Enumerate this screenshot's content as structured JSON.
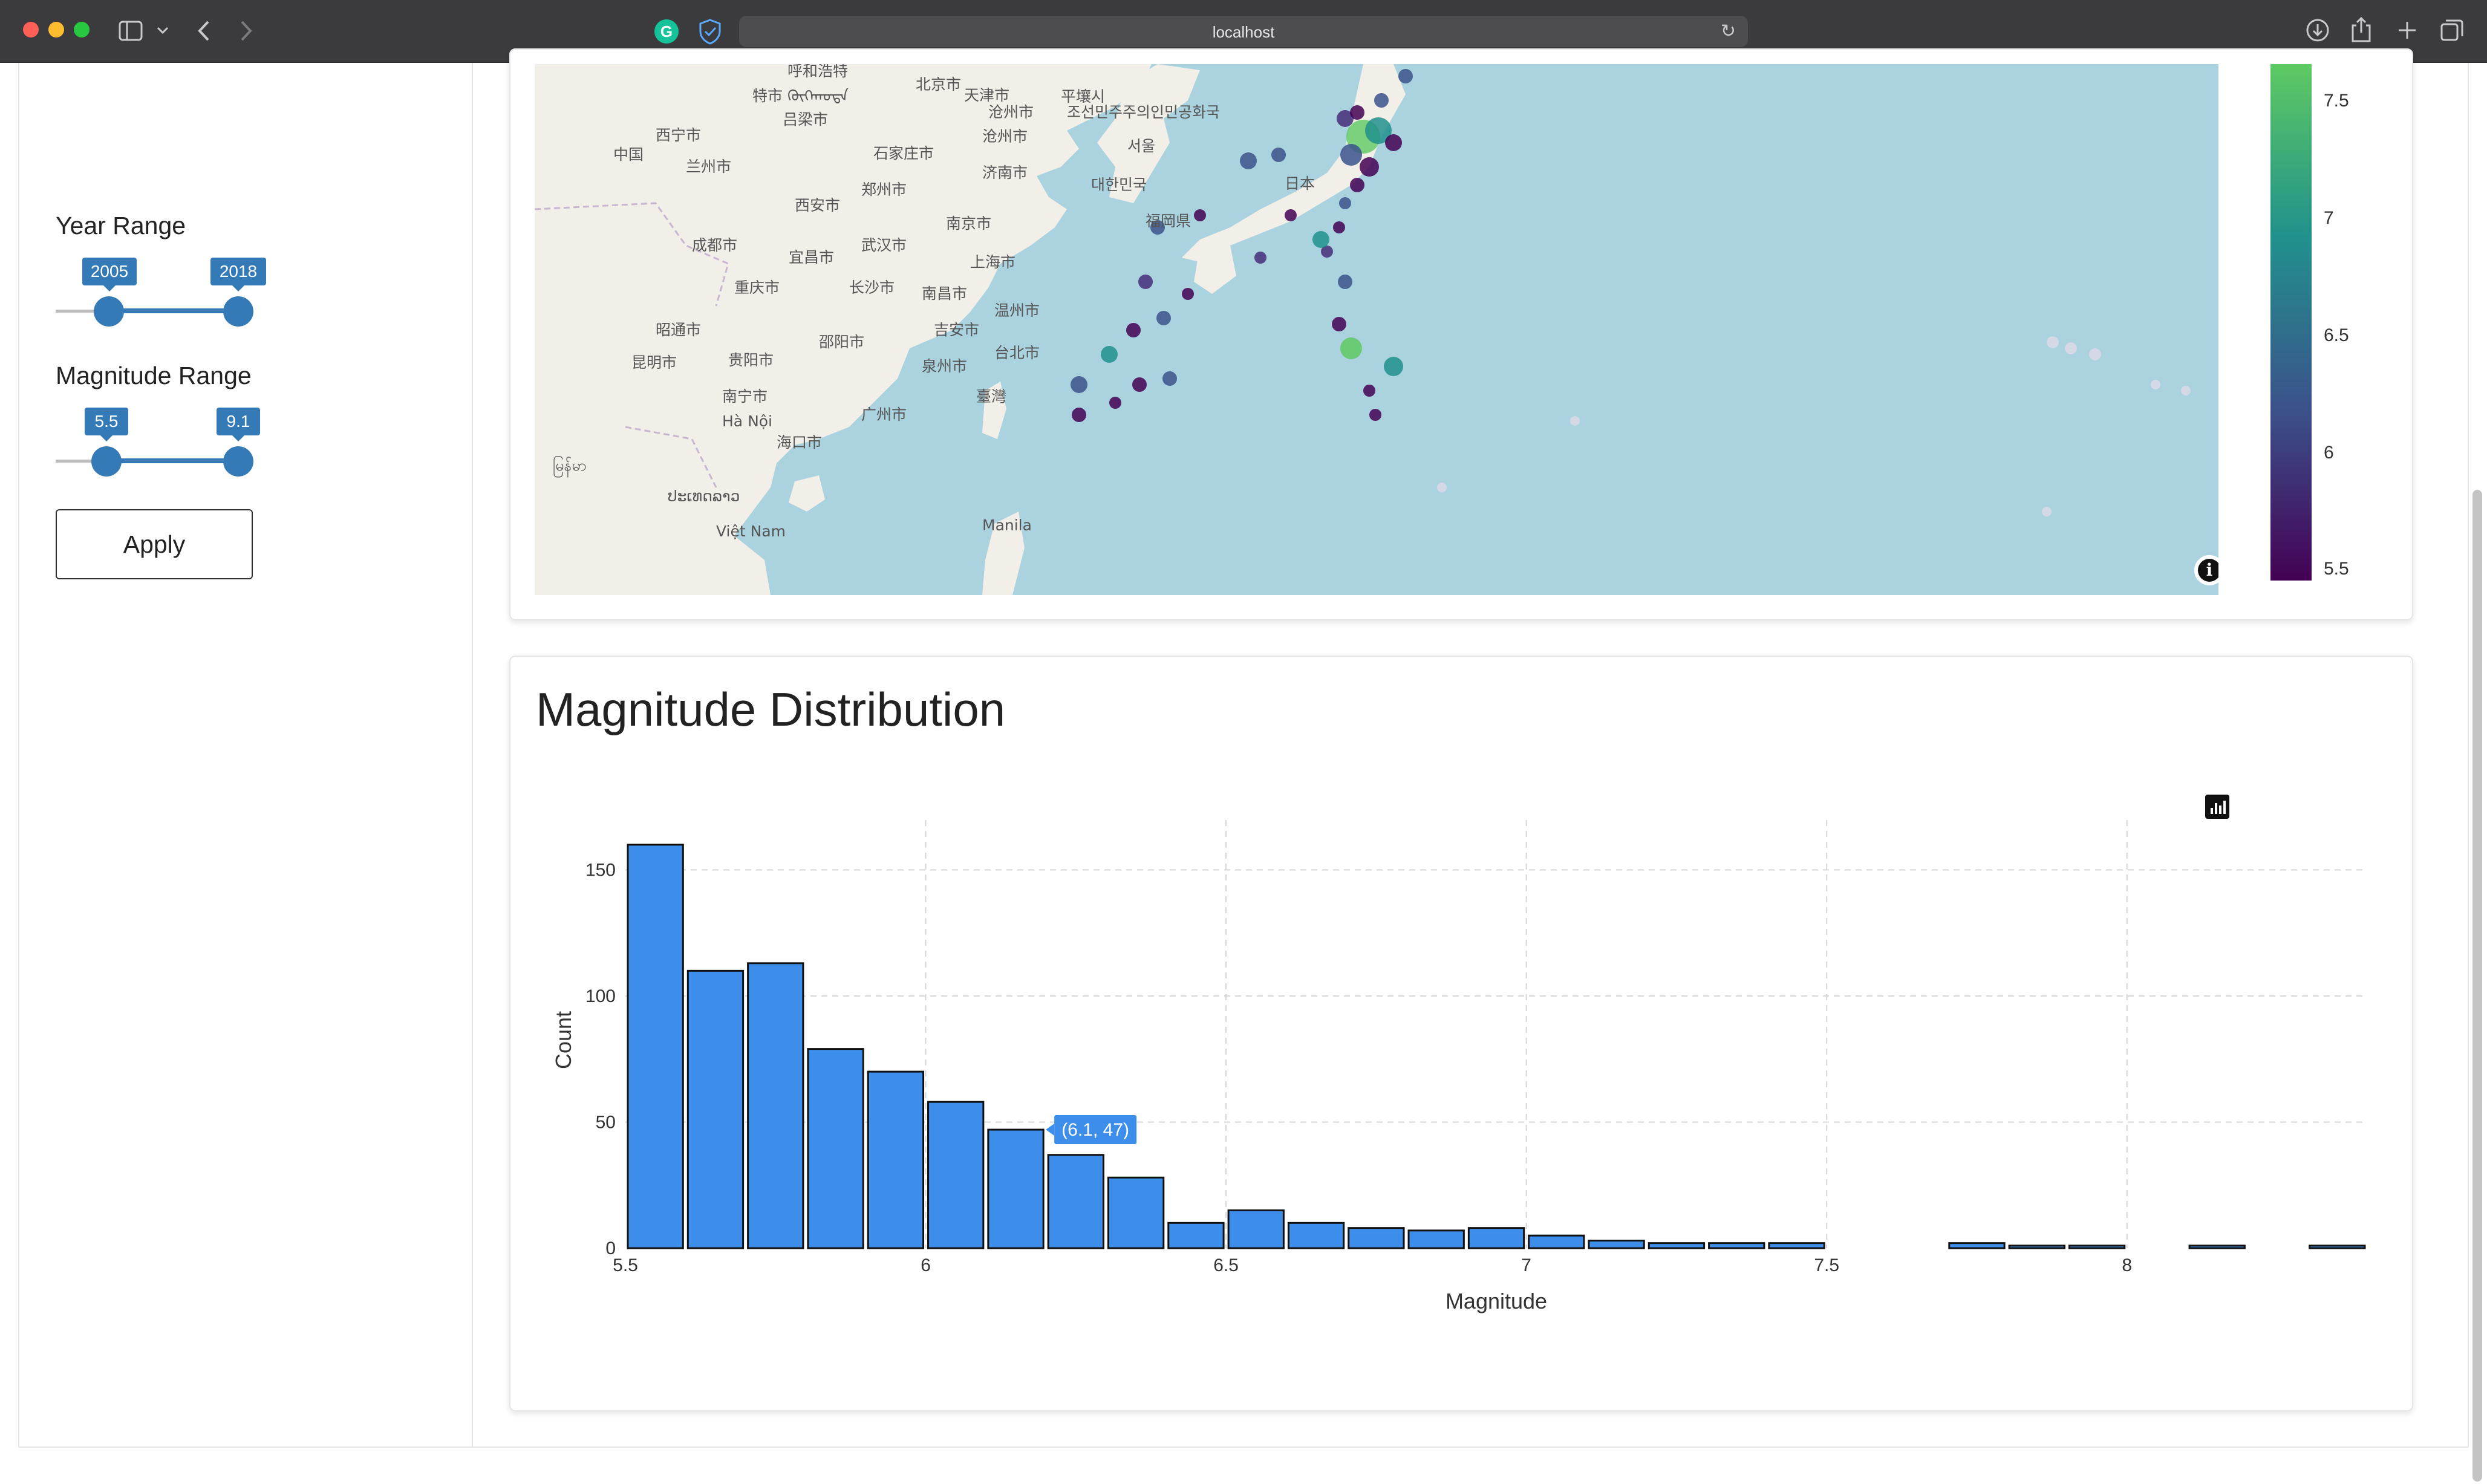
{
  "browser": {
    "url": "localhost"
  },
  "sidebar": {
    "year_range": {
      "label": "Year Range",
      "min": 2005,
      "max": 2018,
      "low_label": "2005",
      "high_label": "2018"
    },
    "magnitude_range": {
      "label": "Magnitude Range",
      "min": 5.5,
      "max": 9.1,
      "low_label": "5.5",
      "high_label": "9.1"
    },
    "apply_label": "Apply"
  },
  "map": {
    "labels": [
      "呼和浩特",
      "特市 ᠬᠥᠬᠡᠬᠣᠲᠠ",
      "北京市",
      "天津市",
      "石家庄市",
      "沧州市",
      "济南市",
      "郑州市",
      "西安市",
      "成都市",
      "重庆市",
      "宜昌市",
      "武汉市",
      "长沙市",
      "南昌市",
      "上海市",
      "温州市",
      "吉安市",
      "泉州市",
      "台北市",
      "臺灣",
      "广州市",
      "南宁市",
      "海口市",
      "Hà Nội",
      "Việt Nam",
      "昆明市",
      "昭通市",
      "贵阳市",
      "邵阳市",
      "兰州市",
      "西宁市",
      "吕梁市",
      "中国",
      "南京市",
      "沧州市",
      "平壤시",
      "조선민주주의인민공화국",
      "서울",
      "대한민국",
      "福岡県",
      "日本",
      "Manila",
      "ປະເທດລາວ",
      "မြန်မာ"
    ],
    "colorbar": {
      "ticks": [
        "7.5",
        "7",
        "6.5",
        "6",
        "5.5"
      ],
      "colors": [
        "#440154",
        "#3b528b",
        "#21918c",
        "#5ec962"
      ]
    },
    "info_symbol": "i"
  },
  "histogram": {
    "title": "Magnitude Distribution",
    "tooltip": "(6.1, 47)",
    "chart_data": {
      "type": "bar",
      "bin_width": 0.1,
      "x_bin_start": [
        5.5,
        5.6,
        5.7,
        5.8,
        5.9,
        6.0,
        6.1,
        6.2,
        6.3,
        6.4,
        6.5,
        6.6,
        6.7,
        6.8,
        6.9,
        7.0,
        7.1,
        7.2,
        7.3,
        7.4,
        7.5,
        7.6,
        7.7,
        7.8,
        7.9,
        8.0,
        8.1,
        8.2,
        8.3,
        8.4
      ],
      "values": [
        160,
        110,
        113,
        79,
        70,
        58,
        47,
        37,
        28,
        10,
        15,
        10,
        8,
        7,
        8,
        5,
        3,
        2,
        2,
        2,
        0,
        0,
        2,
        1,
        1,
        0,
        1,
        0,
        1,
        0
      ],
      "xlabel": "Magnitude",
      "ylabel": "Count",
      "xlim": [
        5.5,
        8.4
      ],
      "ylim": [
        0,
        165
      ],
      "x_ticks": [
        "5.5",
        "6",
        "6.5",
        "7",
        "7.5",
        "8"
      ],
      "y_ticks": [
        "0",
        "50",
        "100",
        "150"
      ],
      "grid": true,
      "bar_color": "#3d8eea"
    }
  }
}
